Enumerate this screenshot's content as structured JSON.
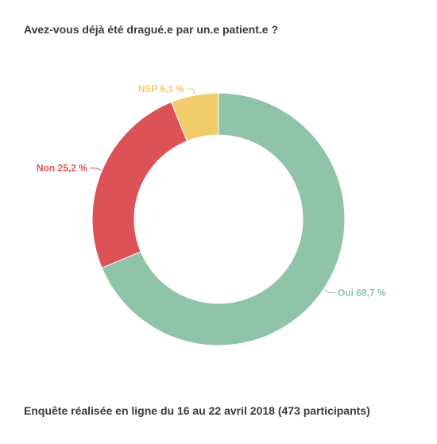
{
  "chart_data": {
    "type": "pie",
    "title": "Avez-vous déjà été dragué.e par un.e patient.e ?",
    "footer": "Enquête réalisée en ligne du 16 au 22 avril 2018  (473 participants)",
    "slices": [
      {
        "label": "Oui",
        "value": 68.7,
        "display": "Oui 68,7 %",
        "color": "#8fc4a8"
      },
      {
        "label": "Non",
        "value": 25.2,
        "display": "Non 25,2 %",
        "color": "#dc5257"
      },
      {
        "label": "NSP",
        "value": 6.1,
        "display": "NSP 6,1 %",
        "color": "#f0cc6a"
      }
    ],
    "donut": true
  }
}
